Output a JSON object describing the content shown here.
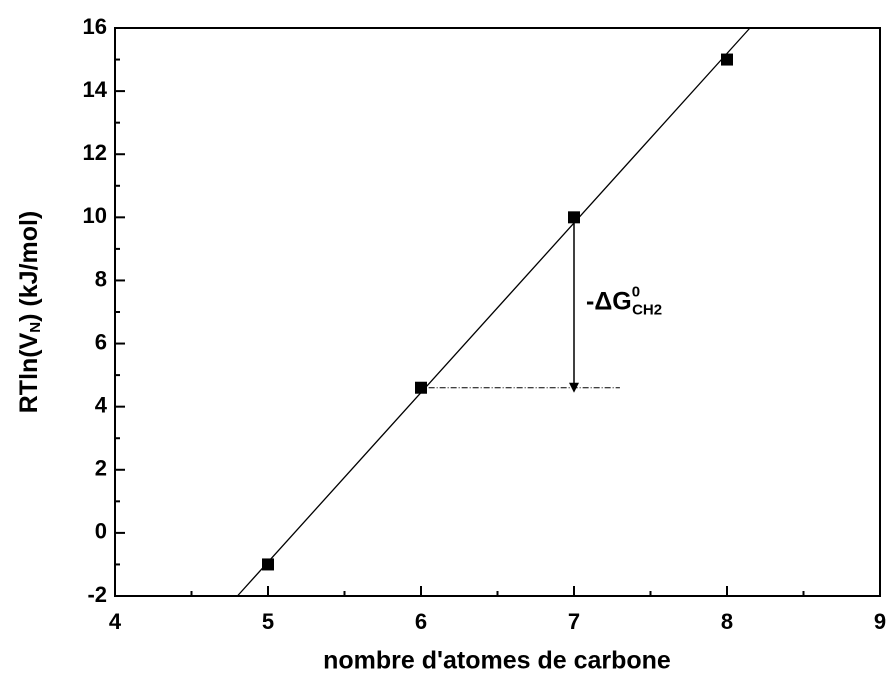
{
  "chart_data": {
    "type": "scatter",
    "x_label": "nombre d'atomes de carbone",
    "y_label": {
      "main": "RTln(V",
      "sub": "N",
      "rest": ") (kJ/mol)"
    },
    "series": [
      {
        "color": "#000000",
        "x": [
          5,
          6,
          7,
          8
        ],
        "values": [
          -1,
          4.6,
          10,
          15
        ]
      }
    ],
    "fit_line": {
      "color": "#000000",
      "x": [
        4.8,
        8.15
      ],
      "values": [
        -2,
        16
      ]
    },
    "annotation": {
      "text": {
        "main": "-ΔG",
        "sup": "0",
        "sub": "CH2"
      },
      "arrow": {
        "x": 7,
        "values": [
          4.6,
          10
        ]
      },
      "dashed": {
        "x": [
          6.05,
          7.3
        ],
        "value": 4.6
      }
    },
    "xlim": [
      4,
      9
    ],
    "ylim": [
      -2,
      16
    ],
    "xticks": [
      4,
      5,
      6,
      7,
      8,
      9
    ],
    "yticks": [
      -2,
      0,
      2,
      4,
      6,
      8,
      10,
      12,
      14,
      16
    ],
    "xminorticks": [
      4.5,
      5.5,
      6.5,
      7.5,
      8.5
    ],
    "yminorticks": [
      -1,
      1,
      3,
      5,
      7,
      9,
      11,
      13,
      15
    ]
  }
}
